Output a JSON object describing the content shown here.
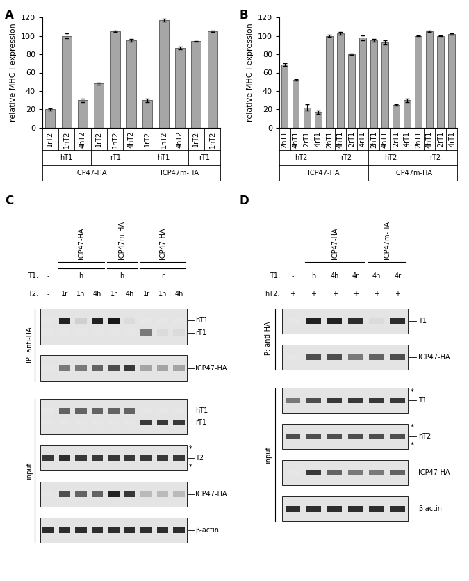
{
  "chart_data": [
    {
      "type": "bar",
      "panel": "A",
      "y_label": "relative MHC I expression",
      "categories": [
        "1rT2",
        "1hT2",
        "4hT2",
        "1rT2",
        "1hT2",
        "4hT2",
        "1rT2",
        "1hT2",
        "4hT2",
        "1rT2",
        "1hT2"
      ],
      "values": [
        20,
        100,
        30,
        48,
        105,
        95,
        30,
        117,
        87,
        94,
        105
      ],
      "errors": [
        1,
        2.5,
        2,
        1,
        1,
        1.5,
        2,
        1.5,
        1.5,
        0.5,
        1
      ],
      "levels": [
        [
          {
            "label": "hT1",
            "span": 3
          },
          {
            "label": "rT1",
            "span": 3
          },
          {
            "label": "hT1",
            "span": 3
          },
          {
            "label": "rT1",
            "span": 2
          }
        ],
        [
          {
            "label": "ICP47-HA",
            "span": 6
          },
          {
            "label": "ICP47m-HA",
            "span": 5
          }
        ]
      ],
      "color": "#a6a6a6",
      "ylim": [
        0,
        120
      ],
      "yticks": [
        0,
        20,
        40,
        60,
        80,
        100,
        120
      ],
      "grid": false
    },
    {
      "type": "bar",
      "panel": "B",
      "y_label": "relative MHC I expression",
      "categories": [
        "2hT1",
        "4hT1",
        "2rT1",
        "4rT1",
        "2hT1",
        "4hT1",
        "2rT1",
        "4rT1",
        "2hT1",
        "4hT1",
        "2rT1",
        "4rT1",
        "2hT1",
        "4hT1",
        "2rT1",
        "4rT1"
      ],
      "values": [
        69,
        52,
        22,
        17,
        100,
        103,
        80,
        98,
        95,
        93,
        25,
        30,
        100,
        105,
        100,
        102
      ],
      "errors": [
        1.5,
        1,
        3.5,
        2,
        1,
        1.5,
        0.5,
        2.5,
        1.5,
        2.5,
        1,
        2,
        0.5,
        1,
        0.5,
        0.5
      ],
      "levels": [
        [
          {
            "label": "hT2",
            "span": 4
          },
          {
            "label": "rT2",
            "span": 4
          },
          {
            "label": "hT2",
            "span": 4
          },
          {
            "label": "rT2",
            "span": 4
          }
        ],
        [
          {
            "label": "ICP47-HA",
            "span": 8
          },
          {
            "label": "ICP47m-HA",
            "span": 8
          }
        ]
      ],
      "color": "#a6a6a6",
      "ylim": [
        0,
        120
      ],
      "yticks": [
        0,
        20,
        40,
        60,
        80,
        100,
        120
      ],
      "grid": false
    }
  ],
  "blot_panels": [
    {
      "panel": "C",
      "lanes": 9,
      "groups": [
        {
          "text": "ICP47-HA",
          "start": 1,
          "span": 3
        },
        {
          "text": "ICP47m-HA",
          "start": 4,
          "span": 2
        },
        {
          "text": "ICP47-HA",
          "start": 6,
          "span": 3
        }
      ],
      "rows": [
        {
          "label": "T1:",
          "cells": [
            {
              "text": "-",
              "start": 0,
              "span": 1
            },
            {
              "text": "h",
              "start": 1,
              "span": 3
            },
            {
              "text": "h",
              "start": 4,
              "span": 2
            },
            {
              "text": "r",
              "start": 6,
              "span": 3
            }
          ]
        },
        {
          "label": "T2:",
          "cells": [
            "-",
            "1r",
            "1h",
            "4h",
            "1r",
            "4h",
            "1r",
            "1h",
            "4h"
          ]
        }
      ],
      "sections": [
        {
          "label": "IP: anti-HA",
          "blots": [
            {
              "rows": [
                {
                  "label": "hT1",
                  "intensity": [
                    0,
                    0.9,
                    0.1,
                    0.9,
                    0.95,
                    0.05,
                    0,
                    0,
                    0
                  ]
                },
                {
                  "label": "rT1",
                  "intensity": [
                    0,
                    0,
                    0,
                    0,
                    0,
                    0,
                    0.5,
                    0.05,
                    0.05
                  ]
                }
              ]
            },
            {
              "rows": [
                {
                  "label": "ICP47-HA",
                  "intensity": [
                    0,
                    0.5,
                    0.5,
                    0.6,
                    0.7,
                    0.8,
                    0.3,
                    0.3,
                    0.3
                  ]
                }
              ]
            }
          ]
        },
        {
          "label": "input",
          "blots": [
            {
              "rows": [
                {
                  "label": "hT1",
                  "intensity": [
                    0,
                    0.6,
                    0.6,
                    0.6,
                    0.6,
                    0.6,
                    0,
                    0,
                    0
                  ]
                },
                {
                  "label": "rT1",
                  "intensity": [
                    0,
                    0,
                    0,
                    0,
                    0,
                    0,
                    0.8,
                    0.8,
                    0.8
                  ]
                }
              ]
            },
            {
              "rows": [
                {
                  "label": "T2",
                  "intensity": [
                    0.8,
                    0.85,
                    0.8,
                    0.8,
                    0.8,
                    0.8,
                    0.8,
                    0.8,
                    0.8
                  ]
                }
              ],
              "marks": [
                "*",
                "*"
              ]
            },
            {
              "rows": [
                {
                  "label": "ICP47-HA",
                  "intensity": [
                    0,
                    0.7,
                    0.6,
                    0.6,
                    0.9,
                    0.8,
                    0.2,
                    0.2,
                    0.2
                  ]
                }
              ]
            },
            {
              "rows": [
                {
                  "label": "β-actin",
                  "intensity": [
                    0.85,
                    0.85,
                    0.85,
                    0.85,
                    0.85,
                    0.85,
                    0.85,
                    0.85,
                    0.85
                  ]
                }
              ]
            }
          ]
        }
      ]
    },
    {
      "panel": "D",
      "lanes": 6,
      "groups": [
        {
          "text": "ICP47-HA",
          "start": 1,
          "span": 3
        },
        {
          "text": "ICP47m-HA",
          "start": 4,
          "span": 2
        }
      ],
      "rows": [
        {
          "label": "T1:",
          "cells": [
            "-",
            "h",
            "4h",
            "4r",
            "4h",
            "4r"
          ]
        },
        {
          "label": "hT2:",
          "cells": [
            "+",
            "+",
            "+",
            "+",
            "+",
            "+"
          ]
        }
      ],
      "sections": [
        {
          "label": "IP: anti-HA",
          "blots": [
            {
              "rows": [
                {
                  "label": "T1",
                  "intensity": [
                    0,
                    0.9,
                    0.9,
                    0.85,
                    0.05,
                    0.85
                  ]
                }
              ]
            },
            {
              "rows": [
                {
                  "label": "ICP47-HA",
                  "intensity": [
                    0,
                    0.7,
                    0.7,
                    0.5,
                    0.6,
                    0.7
                  ]
                }
              ]
            }
          ]
        },
        {
          "label": "input",
          "blots": [
            {
              "rows": [
                {
                  "label": "T1",
                  "intensity": [
                    0.5,
                    0.7,
                    0.8,
                    0.8,
                    0.8,
                    0.8
                  ]
                }
              ],
              "marks": [
                "*"
              ]
            },
            {
              "rows": [
                {
                  "label": "hT2",
                  "intensity": [
                    0.7,
                    0.7,
                    0.7,
                    0.7,
                    0.7,
                    0.7
                  ]
                }
              ],
              "marks": [
                "*",
                "*"
              ]
            },
            {
              "rows": [
                {
                  "label": "ICP47-HA",
                  "intensity": [
                    0,
                    0.8,
                    0.6,
                    0.5,
                    0.5,
                    0.6
                  ]
                }
              ]
            },
            {
              "rows": [
                {
                  "label": "β-actin",
                  "intensity": [
                    0.85,
                    0.85,
                    0.85,
                    0.85,
                    0.85,
                    0.85
                  ]
                }
              ]
            }
          ]
        }
      ]
    }
  ]
}
